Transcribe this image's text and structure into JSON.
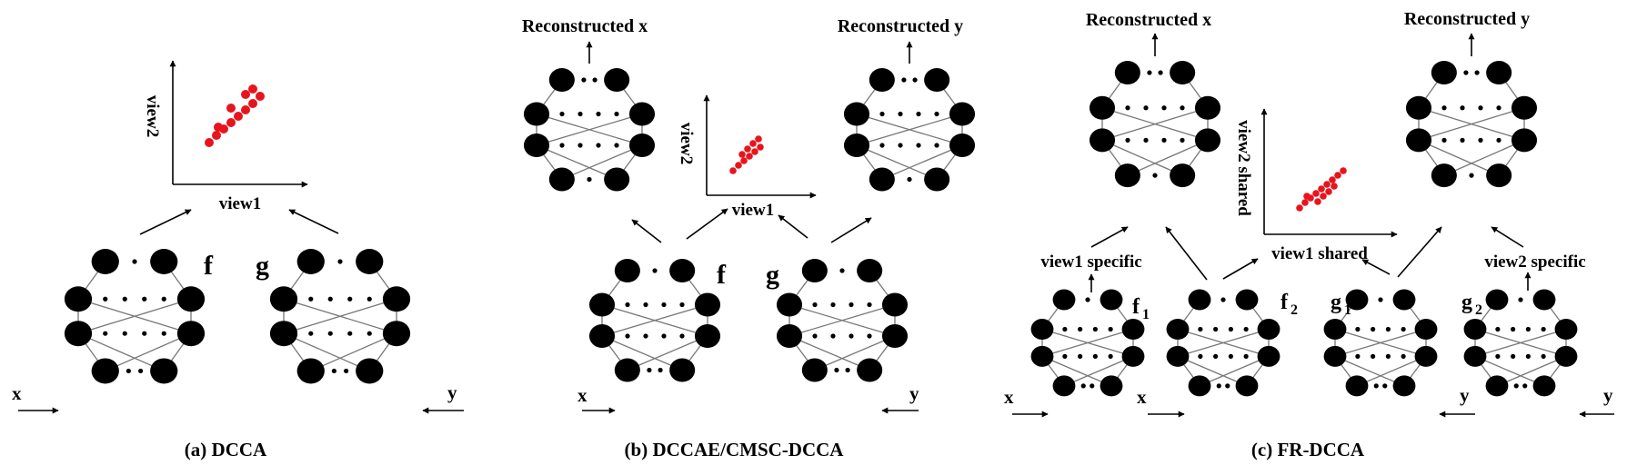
{
  "colors": {
    "node": "#000000",
    "edge": "#777777",
    "arrow": "#000000",
    "points": "#e8141c"
  },
  "panels": [
    {
      "id": "a",
      "caption": "(a) DCCA",
      "networks": [
        {
          "label": "f",
          "sub": "",
          "input": "x"
        },
        {
          "label": "g",
          "sub": "",
          "input": "y"
        }
      ],
      "plot": {
        "xlabel": "view1",
        "ylabel": "view2"
      }
    },
    {
      "id": "b",
      "caption": "(b) DCCAE/CMSC-DCCA",
      "networks": [
        {
          "label": "f",
          "sub": "",
          "input": "x"
        },
        {
          "label": "g",
          "sub": "",
          "input": "y"
        }
      ],
      "decoders": [
        "Reconstructed x",
        "Reconstructed y"
      ],
      "plot": {
        "xlabel": "view1",
        "ylabel": "view2"
      }
    },
    {
      "id": "c",
      "caption": "(c) FR-DCCA",
      "networks": [
        {
          "label": "f",
          "sub": "1",
          "input": "x"
        },
        {
          "label": "f",
          "sub": "2",
          "input": "x"
        },
        {
          "label": "g",
          "sub": "1",
          "input": "y"
        },
        {
          "label": "g",
          "sub": "2",
          "input": "y"
        }
      ],
      "decoders": [
        "Reconstructed x",
        "Reconstructed y"
      ],
      "plot": {
        "xlabel": "view1 shared",
        "ylabel": "view2 shared"
      },
      "specific_labels": [
        "view1 specific",
        "view2 specific"
      ]
    }
  ]
}
